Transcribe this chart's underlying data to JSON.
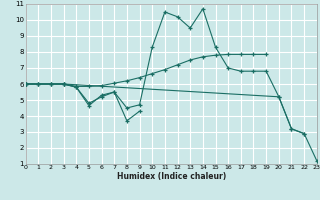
{
  "xlabel": "Humidex (Indice chaleur)",
  "bg_color": "#cce8e8",
  "grid_color": "#ffffff",
  "line_color": "#1a6e64",
  "xlim": [
    0,
    23
  ],
  "ylim": [
    1,
    11
  ],
  "xticks": [
    0,
    1,
    2,
    3,
    4,
    5,
    6,
    7,
    8,
    9,
    10,
    11,
    12,
    13,
    14,
    15,
    16,
    17,
    18,
    19,
    20,
    21,
    22,
    23
  ],
  "yticks": [
    1,
    2,
    3,
    4,
    5,
    6,
    7,
    8,
    9,
    10,
    11
  ],
  "lines": [
    {
      "x": [
        0,
        1,
        2,
        3,
        4,
        5,
        6,
        7,
        8,
        9,
        10,
        11,
        12,
        13,
        14,
        15,
        16,
        17,
        18,
        19
      ],
      "y": [
        6,
        6,
        6,
        6,
        5.85,
        5.85,
        5.9,
        6.05,
        6.2,
        6.4,
        6.65,
        6.9,
        7.2,
        7.5,
        7.7,
        7.8,
        7.85,
        7.85,
        7.85,
        7.85
      ]
    },
    {
      "x": [
        0,
        1,
        2,
        3,
        4,
        5,
        6,
        7,
        8,
        9,
        10,
        11,
        12,
        13,
        14,
        15,
        16,
        17,
        18,
        19,
        20,
        21,
        22
      ],
      "y": [
        6,
        6,
        6,
        6,
        5.8,
        4.8,
        5.2,
        5.5,
        4.5,
        4.7,
        8.3,
        10.5,
        10.2,
        9.5,
        10.7,
        8.3,
        7.0,
        6.8,
        6.8,
        6.8,
        5.2,
        3.2,
        2.9
      ]
    },
    {
      "x": [
        0,
        1,
        2,
        3,
        4,
        5,
        6,
        7,
        8,
        9
      ],
      "y": [
        6,
        6,
        6,
        6,
        5.8,
        4.65,
        5.3,
        5.5,
        3.7,
        4.3
      ]
    },
    {
      "x": [
        0,
        3,
        20,
        21,
        22,
        23
      ],
      "y": [
        6,
        6,
        5.2,
        3.2,
        2.9,
        1.2
      ]
    }
  ]
}
